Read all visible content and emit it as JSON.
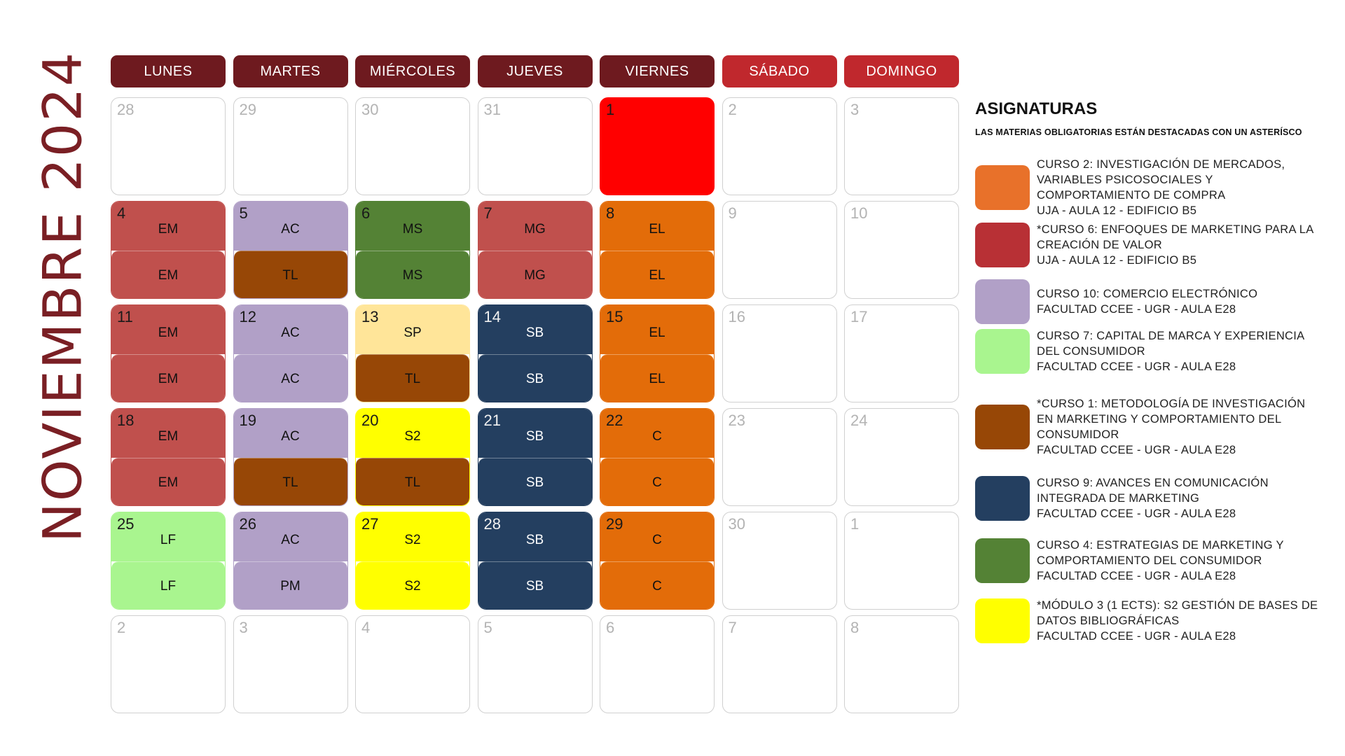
{
  "title": "NOVIEMBRE 2024",
  "colors": {
    "EM": "#c0504d",
    "AC": "#b1a0c7",
    "MS": "#548235",
    "MG": "#c0504d",
    "EL": "#e36c09",
    "TL": "#974706",
    "SP": "#ffe599",
    "SB": "#243f60",
    "S2": "#ffff00",
    "C": "#e36c09",
    "LF": "#a9f58f",
    "PM": "#b1a0c7",
    "holiday": "#ff0000",
    "weekday_header": "#6e1a1f",
    "weekend_header": "#c0282d"
  },
  "weekdays": [
    "LUNES",
    "MARTES",
    "MIÉRCOLES",
    "JUEVES",
    "VIERNES",
    "SÁBADO",
    "DOMINGO"
  ],
  "weeks": [
    [
      {
        "day": "28"
      },
      {
        "day": "29"
      },
      {
        "day": "30"
      },
      {
        "day": "31"
      },
      {
        "day": "1",
        "holiday": true
      },
      {
        "day": "2"
      },
      {
        "day": "3"
      }
    ],
    [
      {
        "day": "4",
        "top": "EM",
        "bottom": "EM"
      },
      {
        "day": "5",
        "top": "AC",
        "bottom": "TL"
      },
      {
        "day": "6",
        "top": "MS",
        "bottom": "MS"
      },
      {
        "day": "7",
        "top": "MG",
        "bottom": "MG"
      },
      {
        "day": "8",
        "top": "EL",
        "bottom": "EL"
      },
      {
        "day": "9"
      },
      {
        "day": "10"
      }
    ],
    [
      {
        "day": "11",
        "top": "EM",
        "bottom": "EM"
      },
      {
        "day": "12",
        "top": "AC",
        "bottom": "AC"
      },
      {
        "day": "13",
        "top": "SP",
        "bottom": "TL"
      },
      {
        "day": "14",
        "top": "SB",
        "bottom": "SB"
      },
      {
        "day": "15",
        "top": "EL",
        "bottom": "EL"
      },
      {
        "day": "16"
      },
      {
        "day": "17"
      }
    ],
    [
      {
        "day": "18",
        "top": "EM",
        "bottom": "EM"
      },
      {
        "day": "19",
        "top": "AC",
        "bottom": "TL"
      },
      {
        "day": "20",
        "top": "S2",
        "bottom": "TL"
      },
      {
        "day": "21",
        "top": "SB",
        "bottom": "SB"
      },
      {
        "day": "22",
        "top": "C",
        "bottom": "C"
      },
      {
        "day": "23"
      },
      {
        "day": "24"
      }
    ],
    [
      {
        "day": "25",
        "top": "LF",
        "bottom": "LF"
      },
      {
        "day": "26",
        "top": "AC",
        "bottom": "PM"
      },
      {
        "day": "27",
        "top": "S2",
        "bottom": "S2"
      },
      {
        "day": "28",
        "top": "SB",
        "bottom": "SB"
      },
      {
        "day": "29",
        "top": "C",
        "bottom": "C"
      },
      {
        "day": "30"
      },
      {
        "day": "1"
      }
    ],
    [
      {
        "day": "2"
      },
      {
        "day": "3"
      },
      {
        "day": "4"
      },
      {
        "day": "5"
      },
      {
        "day": "6"
      },
      {
        "day": "7"
      },
      {
        "day": "8"
      }
    ]
  ],
  "legend": {
    "title": "ASIGNATURAS",
    "note": "LAS MATERIAS OBLIGATORIAS ESTÁN DESTACADAS CON UN ASTERÍSCO",
    "items": [
      {
        "color": "#e8712a",
        "lines": [
          "CURSO 2: INVESTIGACIÓN DE MERCADOS,",
          "VARIABLES PSICOSOCIALES Y",
          "COMPORTAMIENTO DE COMPRA",
          "UJA - AULA 12 - EDIFICIO B5"
        ]
      },
      {
        "color": "#b83035",
        "lines": [
          "*CURSO 6: ENFOQUES DE MARKETING PARA LA",
          "CREACIÓN DE VALOR",
          "UJA - AULA 12 - EDIFICIO B5"
        ]
      },
      {
        "color": "#b1a0c7",
        "lines": [
          "CURSO 10: COMERCIO ELECTRÓNICO",
          "FACULTAD CCEE - UGR - AULA E28"
        ]
      },
      {
        "color": "#a9f58f",
        "lines": [
          "CURSO 7: CAPITAL DE MARCA Y EXPERIENCIA",
          "DEL CONSUMIDOR",
          "FACULTAD CCEE - UGR - AULA E28"
        ]
      },
      {
        "color": "#974706",
        "lines": [
          "*CURSO 1: METODOLOGÍA DE INVESTIGACIÓN",
          "EN MARKETING Y COMPORTAMIENTO DEL",
          "CONSUMIDOR",
          "FACULTAD CCEE - UGR - AULA E28"
        ]
      },
      {
        "color": "#243f60",
        "lines": [
          "CURSO 9: AVANCES EN COMUNICACIÓN",
          "INTEGRADA DE MARKETING",
          "FACULTAD CCEE - UGR - AULA E28"
        ]
      },
      {
        "color": "#548235",
        "lines": [
          "CURSO 4: ESTRATEGIAS DE MARKETING Y",
          "COMPORTAMIENTO DEL CONSUMIDOR",
          "FACULTAD CCEE - UGR - AULA E28"
        ]
      },
      {
        "color": "#ffff00",
        "lines": [
          "*MÓDULO 3 (1 ECTS): S2 GESTIÓN DE BASES DE",
          "DATOS BIBLIOGRÁFICAS",
          "FACULTAD CCEE - UGR - AULA E28"
        ]
      }
    ]
  }
}
